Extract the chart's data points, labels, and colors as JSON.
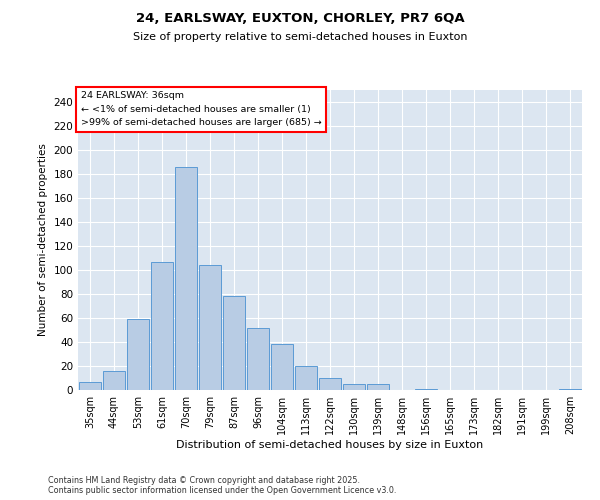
{
  "title1": "24, EARLSWAY, EUXTON, CHORLEY, PR7 6QA",
  "title2": "Size of property relative to semi-detached houses in Euxton",
  "xlabel": "Distribution of semi-detached houses by size in Euxton",
  "ylabel": "Number of semi-detached properties",
  "categories": [
    "35sqm",
    "44sqm",
    "53sqm",
    "61sqm",
    "70sqm",
    "79sqm",
    "87sqm",
    "96sqm",
    "104sqm",
    "113sqm",
    "122sqm",
    "130sqm",
    "139sqm",
    "148sqm",
    "156sqm",
    "165sqm",
    "173sqm",
    "182sqm",
    "191sqm",
    "199sqm",
    "208sqm"
  ],
  "values": [
    7,
    16,
    59,
    107,
    186,
    104,
    78,
    52,
    38,
    20,
    10,
    5,
    5,
    0,
    1,
    0,
    0,
    0,
    0,
    0,
    1
  ],
  "bar_color": "#b8cce4",
  "bar_edge_color": "#5b9bd5",
  "plot_background": "#dce6f1",
  "ylim": [
    0,
    250
  ],
  "yticks": [
    0,
    20,
    40,
    60,
    80,
    100,
    120,
    140,
    160,
    180,
    200,
    220,
    240
  ],
  "annotation_title": "24 EARLSWAY: 36sqm",
  "annotation_line1": "← <1% of semi-detached houses are smaller (1)",
  "annotation_line2": ">99% of semi-detached houses are larger (685) →",
  "footnote1": "Contains HM Land Registry data © Crown copyright and database right 2025.",
  "footnote2": "Contains public sector information licensed under the Open Government Licence v3.0."
}
